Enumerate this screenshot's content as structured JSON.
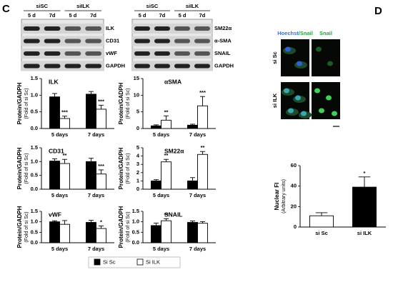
{
  "panel_c": {
    "label": "C",
    "blots": [
      {
        "groups": [
          "siSC",
          "siILK"
        ],
        "lanes": [
          "5 d",
          "7d",
          "5 d",
          "7d"
        ],
        "rows": [
          "ILK",
          "CD31",
          "vWF",
          "GAPDH"
        ]
      },
      {
        "groups": [
          "siSC",
          "siILK"
        ],
        "lanes": [
          "5 d",
          "7d",
          "5 d",
          "7d"
        ],
        "rows": [
          "SM22α",
          "α-SMA",
          "SNAIL",
          "GAPDH"
        ]
      }
    ]
  },
  "panel_d": {
    "label": "D",
    "columns": [
      {
        "parts": [
          "Hoechst",
          "/Snail"
        ]
      },
      {
        "parts": [
          "Snail"
        ]
      }
    ],
    "rows": [
      "si Sc",
      "si ILK"
    ]
  },
  "chart_data": [
    {
      "type": "bar",
      "title": "ILK",
      "ylabel": [
        "Protein/GADPH",
        "(Fold of si Sc)"
      ],
      "categories": [
        "5 days",
        "7 days"
      ],
      "series": [
        {
          "name": "Si Sc",
          "color": "#000000",
          "values": [
            0.95,
            1.03
          ],
          "errors": [
            0.1,
            0.08
          ],
          "annotations": [
            null,
            null
          ]
        },
        {
          "name": "Si ILK",
          "color": "#ffffff",
          "values": [
            0.3,
            0.58
          ],
          "errors": [
            0.07,
            0.12
          ],
          "annotations": [
            "***",
            "***"
          ]
        }
      ],
      "ylim": [
        0,
        1.5
      ],
      "yticks": [
        {
          "value": 0,
          "label": "0.0"
        },
        0.5,
        {
          "value": 1,
          "label": "1.0"
        },
        1.5
      ]
    },
    {
      "type": "bar",
      "title": "αSMA",
      "ylabel": [
        "Protein/GADPH",
        "(Fold of si Sc)"
      ],
      "categories": [
        "5 days",
        "7 days"
      ],
      "series": [
        {
          "name": "Si Sc",
          "color": "#000000",
          "values": [
            0.8,
            1.0
          ],
          "errors": [
            0.3,
            0.3
          ],
          "annotations": [
            null,
            null
          ]
        },
        {
          "name": "Si ILK",
          "color": "#ffffff",
          "values": [
            2.5,
            6.8
          ],
          "errors": [
            1.3,
            2.8
          ],
          "annotations": [
            "**",
            "***"
          ]
        }
      ],
      "ylim": [
        0,
        15
      ],
      "yticks": [
        0,
        5,
        10,
        15
      ]
    },
    {
      "type": "bar",
      "title": "CD31",
      "ylabel": [
        "Protein/GADPH",
        "(Fold of si Sc)"
      ],
      "categories": [
        "5 days",
        "7 days"
      ],
      "series": [
        {
          "name": "Si Sc",
          "color": "#000000",
          "values": [
            1.02,
            1.0
          ],
          "errors": [
            0.08,
            0.12
          ],
          "annotations": [
            null,
            null
          ]
        },
        {
          "name": "Si ILK",
          "color": "#ffffff",
          "values": [
            0.93,
            0.55
          ],
          "errors": [
            0.15,
            0.15
          ],
          "annotations": [
            "**",
            "***"
          ]
        }
      ],
      "ylim": [
        0,
        1.5
      ],
      "yticks": [
        {
          "value": 0,
          "label": "0.0"
        },
        0.5,
        {
          "value": 1,
          "label": "1.0"
        },
        1.5
      ]
    },
    {
      "type": "bar",
      "title": "SM22α",
      "ylabel": [
        "Protein/GADPH",
        "(Fold of si Sc)"
      ],
      "categories": [
        "5 days",
        "7 days"
      ],
      "series": [
        {
          "name": "Si Sc",
          "color": "#000000",
          "values": [
            1.0,
            1.0
          ],
          "errors": [
            0.15,
            0.4
          ],
          "annotations": [
            null,
            null
          ]
        },
        {
          "name": "Si ILK",
          "color": "#ffffff",
          "values": [
            3.3,
            4.2
          ],
          "errors": [
            0.3,
            0.35
          ],
          "annotations": [
            "**",
            "**"
          ]
        }
      ],
      "ylim": [
        0,
        5
      ],
      "yticks": [
        0,
        1,
        2,
        3,
        4,
        5
      ]
    },
    {
      "type": "bar",
      "title": "vWF",
      "ylabel": [
        "Protein/GADPH",
        "(Fold of si Sc)"
      ],
      "categories": [
        "5 days",
        "7 days"
      ],
      "series": [
        {
          "name": "Si Sc",
          "color": "#000000",
          "values": [
            1.0,
            0.97
          ],
          "errors": [
            0.05,
            0.1
          ],
          "annotations": [
            null,
            null
          ]
        },
        {
          "name": "Si ILK",
          "color": "#ffffff",
          "values": [
            0.88,
            0.68
          ],
          "errors": [
            0.18,
            0.12
          ],
          "annotations": [
            null,
            "*"
          ]
        }
      ],
      "ylim": [
        0,
        1.5
      ],
      "yticks": [
        {
          "value": 0,
          "label": "0.0"
        },
        0.5,
        {
          "value": 1,
          "label": "1.0"
        },
        1.5
      ]
    },
    {
      "type": "bar",
      "title": "SNAIL",
      "ylabel": [
        "Protein/GADPH",
        "(Fold of si Sc)"
      ],
      "categories": [
        "5 days",
        "7 days"
      ],
      "series": [
        {
          "name": "Si Sc",
          "color": "#000000",
          "values": [
            0.82,
            0.97
          ],
          "errors": [
            0.12,
            0.07
          ],
          "annotations": [
            null,
            null
          ]
        },
        {
          "name": "Si ILK",
          "color": "#ffffff",
          "values": [
            1.05,
            0.93
          ],
          "errors": [
            0.1,
            0.08
          ],
          "annotations": [
            "**",
            null
          ]
        }
      ],
      "ylim": [
        0,
        1.5
      ],
      "yticks": [
        {
          "value": 0,
          "label": "0.0"
        },
        0.5,
        {
          "value": 1,
          "label": "1.0"
        },
        1.5
      ]
    },
    {
      "type": "bar",
      "ylabel": [
        "Nuclear FI",
        "(Arbitrary units)"
      ],
      "categories": [
        "si Sc",
        "si ILK"
      ],
      "values": [
        11,
        39
      ],
      "errors": [
        3,
        10
      ],
      "annotations": [
        null,
        "*"
      ],
      "colors": [
        "#ffffff",
        "#000000"
      ],
      "ylim": [
        0,
        60
      ],
      "yticks": [
        0,
        20,
        40,
        60
      ]
    }
  ]
}
